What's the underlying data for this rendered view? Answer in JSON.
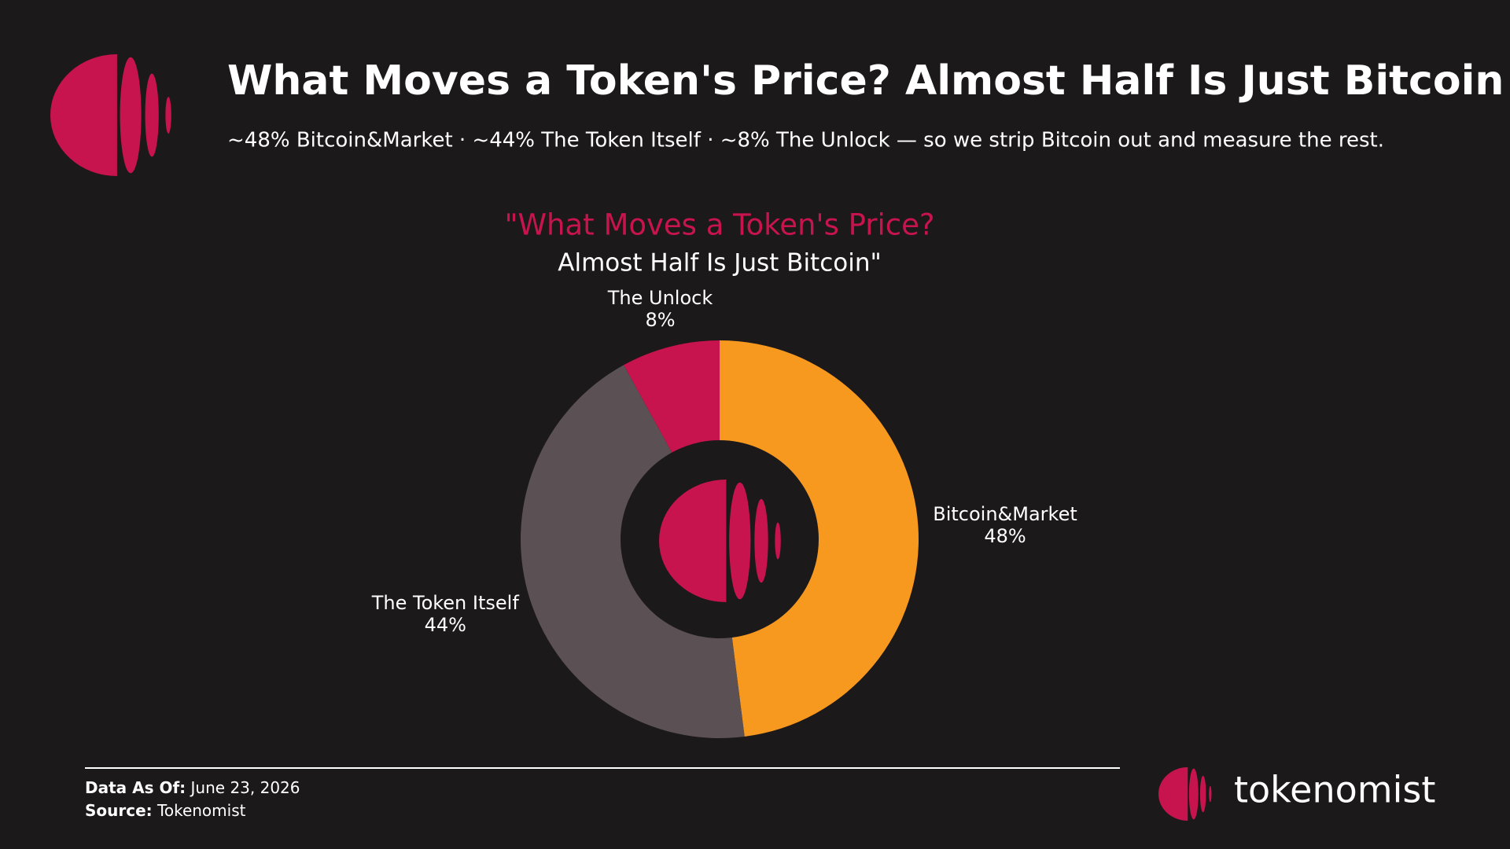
{
  "header": {
    "title": "What Moves a Token's Price? Almost Half Is Just Bitcoin",
    "subtitle": "~48% Bitcoin&Market · ~44% The Token Itself · ~8% The Unlock — so we strip Bitcoin out and measure the rest."
  },
  "chart_data": {
    "type": "donut",
    "title": [
      "\"What Moves a Token's Price?",
      "Almost Half Is Just Bitcoin\""
    ],
    "categories": [
      "Bitcoin&Market",
      "The Token Itself",
      "The Unlock"
    ],
    "values": [
      48,
      44,
      8
    ],
    "value_labels": [
      "48%",
      "44%",
      "8%"
    ],
    "colors": [
      "#f7981f",
      "#5b5053",
      "#c8144e"
    ]
  },
  "footer": {
    "date_label": "Data As Of:",
    "date": "June 23, 2026",
    "source_label": "Source:",
    "source": "Tokenomist",
    "brand": "tokenomist"
  }
}
